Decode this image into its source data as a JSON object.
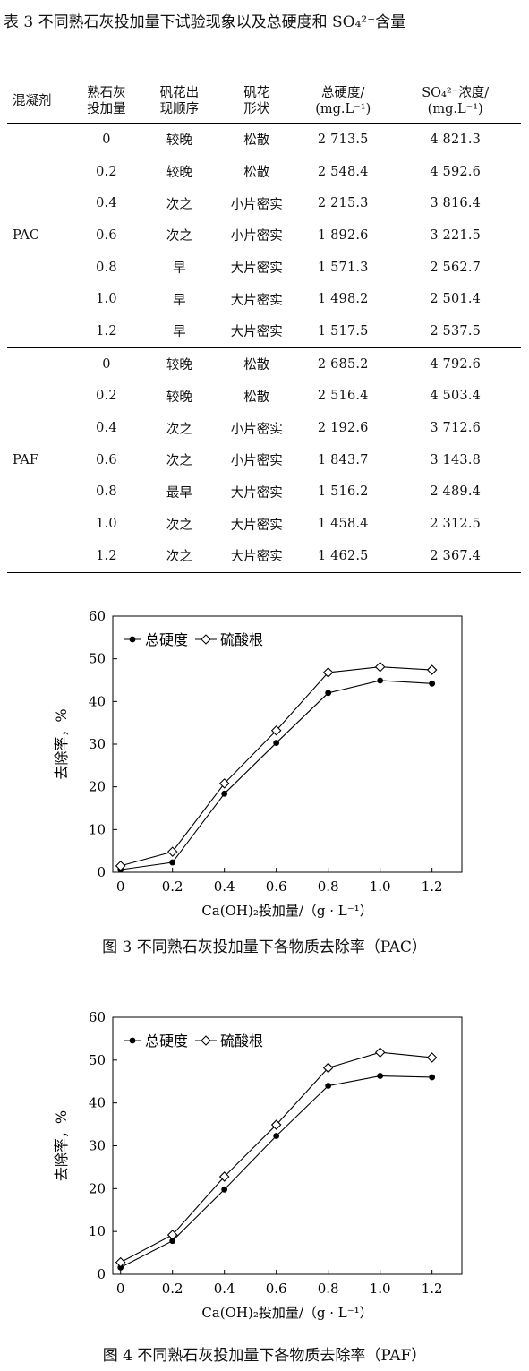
{
  "table": {
    "caption": "表 3  不同熟石灰投加量下试验现象以及总硬度和 SO₄²⁻含量",
    "headers": {
      "h0": "混凝剂",
      "h1a": "熟石灰",
      "h1b": "投加量",
      "h2a": "矾花出",
      "h2b": "现顺序",
      "h3a": "矾花",
      "h3b": "形状",
      "h4a": "总硬度/",
      "h4b": "(mg.L⁻¹)",
      "h5a": "SO₄²⁻浓度/",
      "h5b": "(mg.L⁻¹)"
    },
    "groups": [
      {
        "name": "PAC",
        "rows": [
          {
            "dose": "0",
            "order": "较晚",
            "shape": "松散",
            "hardness": "2 713.5",
            "sulfate": "4 821.3"
          },
          {
            "dose": "0.2",
            "order": "较晚",
            "shape": "松散",
            "hardness": "2 548.4",
            "sulfate": "4 592.6"
          },
          {
            "dose": "0.4",
            "order": "次之",
            "shape": "小片密实",
            "hardness": "2 215.3",
            "sulfate": "3 816.4"
          },
          {
            "dose": "0.6",
            "order": "次之",
            "shape": "小片密实",
            "hardness": "1 892.6",
            "sulfate": "3 221.5"
          },
          {
            "dose": "0.8",
            "order": "早",
            "shape": "大片密实",
            "hardness": "1 571.3",
            "sulfate": "2 562.7"
          },
          {
            "dose": "1.0",
            "order": "早",
            "shape": "大片密实",
            "hardness": "1 498.2",
            "sulfate": "2 501.4"
          },
          {
            "dose": "1.2",
            "order": "早",
            "shape": "大片密实",
            "hardness": "1 517.5",
            "sulfate": "2 537.5"
          }
        ]
      },
      {
        "name": "PAF",
        "rows": [
          {
            "dose": "0",
            "order": "较晚",
            "shape": "松散",
            "hardness": "2 685.2",
            "sulfate": "4 792.6"
          },
          {
            "dose": "0.2",
            "order": "较晚",
            "shape": "松散",
            "hardness": "2 516.4",
            "sulfate": "4 503.4"
          },
          {
            "dose": "0.4",
            "order": "次之",
            "shape": "小片密实",
            "hardness": "2 192.6",
            "sulfate": "3 712.6"
          },
          {
            "dose": "0.6",
            "order": "次之",
            "shape": "小片密实",
            "hardness": "1 843.7",
            "sulfate": "3 143.8"
          },
          {
            "dose": "0.8",
            "order": "最早",
            "shape": "大片密实",
            "hardness": "1 516.2",
            "sulfate": "2 489.4"
          },
          {
            "dose": "1.0",
            "order": "次之",
            "shape": "大片密实",
            "hardness": "1 458.4",
            "sulfate": "2 312.5"
          },
          {
            "dose": "1.2",
            "order": "次之",
            "shape": "大片密实",
            "hardness": "1 462.5",
            "sulfate": "2 367.4"
          }
        ]
      }
    ]
  },
  "chart_data": [
    {
      "type": "line",
      "caption": "图 3   不同熟石灰投加量下各物质去除率（PAC）",
      "xlabel": "Ca(OH)₂投加量/（g · L⁻¹）",
      "ylabel": "去除率，%",
      "x": [
        0,
        0.2,
        0.4,
        0.6,
        0.8,
        1.0,
        1.2
      ],
      "x_tick_labels": [
        "0",
        "0.2",
        "0.4",
        "0.6",
        "0.8",
        "1.0",
        "1.2"
      ],
      "ylim": [
        0,
        60
      ],
      "y_ticks": [
        0,
        10,
        20,
        30,
        40,
        50,
        60
      ],
      "legend_position": "top-left",
      "series": [
        {
          "name": "总硬度",
          "marker": "filled-circle",
          "values": [
            0.6,
            2.3,
            18.4,
            30.3,
            42.0,
            44.9,
            44.2
          ]
        },
        {
          "name": "硫酸根",
          "marker": "open-diamond",
          "values": [
            1.5,
            4.8,
            20.8,
            33.2,
            46.8,
            48.1,
            47.4
          ]
        }
      ]
    },
    {
      "type": "line",
      "caption": "图 4   不同熟石灰投加量下各物质去除率（PAF）",
      "xlabel": "Ca(OH)₂投加量/（g · L⁻¹）",
      "ylabel": "去除率，%",
      "x": [
        0,
        0.2,
        0.4,
        0.6,
        0.8,
        1.0,
        1.2
      ],
      "x_tick_labels": [
        "0",
        "0.2",
        "0.4",
        "0.6",
        "0.8",
        "1.0",
        "1.2"
      ],
      "ylim": [
        0,
        60
      ],
      "y_ticks": [
        0,
        10,
        20,
        30,
        40,
        50,
        60
      ],
      "legend_position": "top-left",
      "series": [
        {
          "name": "总硬度",
          "marker": "filled-circle",
          "values": [
            1.6,
            7.8,
            19.8,
            32.3,
            44.0,
            46.3,
            46.0
          ]
        },
        {
          "name": "硫酸根",
          "marker": "open-diamond",
          "values": [
            2.8,
            9.2,
            22.8,
            34.9,
            48.2,
            51.8,
            50.6
          ]
        }
      ]
    }
  ]
}
